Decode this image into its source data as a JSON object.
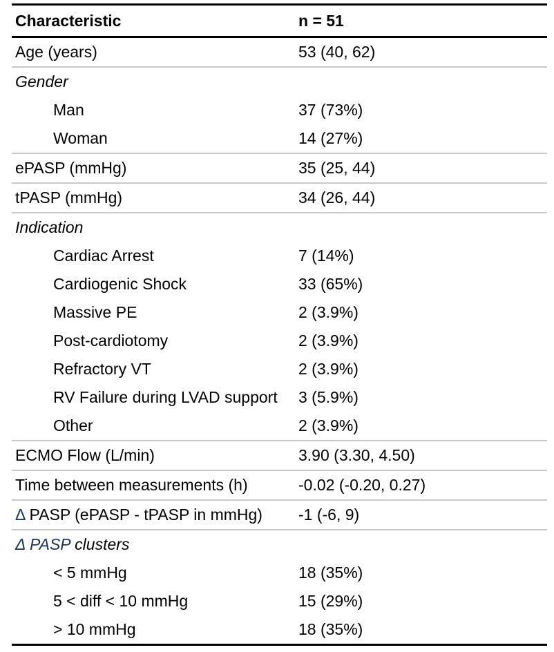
{
  "colors": {
    "accent": "#17365d",
    "rule_thick": "#000000",
    "rule_thin": "#c9c9c9",
    "text": "#000000",
    "background": "#ffffff"
  },
  "table": {
    "header": {
      "characteristic": "Characteristic",
      "value": "n = 51"
    },
    "rows": [
      {
        "label": "Age (years)",
        "value": "53 (40, 62)",
        "style": "normal",
        "divider_after": true
      },
      {
        "label": "Gender",
        "value": "",
        "style": "group",
        "divider_after": false
      },
      {
        "label": "Man",
        "value": "37 (73%)",
        "style": "sub",
        "divider_after": false
      },
      {
        "label": "Woman",
        "value": "14 (27%)",
        "style": "sub",
        "divider_after": true
      },
      {
        "label": "ePASP (mmHg)",
        "value": "35 (25, 44)",
        "style": "normal",
        "divider_after": true
      },
      {
        "label": "tPASP (mmHg)",
        "value": "34 (26, 44)",
        "style": "normal",
        "divider_after": true
      },
      {
        "label": "Indication",
        "value": "",
        "style": "group",
        "divider_after": false
      },
      {
        "label": "Cardiac Arrest",
        "value": "7 (14%)",
        "style": "sub",
        "divider_after": false
      },
      {
        "label": "Cardiogenic Shock",
        "value": "33 (65%)",
        "style": "sub",
        "divider_after": false
      },
      {
        "label": "Massive PE",
        "value": "2 (3.9%)",
        "style": "sub",
        "divider_after": false
      },
      {
        "label": "Post-cardiotomy",
        "value": "2 (3.9%)",
        "style": "sub",
        "divider_after": false
      },
      {
        "label": "Refractory VT",
        "value": "2 (3.9%)",
        "style": "sub",
        "divider_after": false
      },
      {
        "label": "RV Failure during LVAD support",
        "value": "3 (5.9%)",
        "style": "sub",
        "divider_after": false
      },
      {
        "label": "Other",
        "value": "2 (3.9%)",
        "style": "sub",
        "divider_after": true
      },
      {
        "label": "ECMO Flow (L/min)",
        "value": "3.90 (3.30, 4.50)",
        "style": "normal",
        "divider_after": true
      },
      {
        "label": "Time between measurements (h)",
        "value": "-0.02 (-0.20, 0.27)",
        "style": "normal",
        "divider_after": true
      },
      {
        "accent_prefix": "Δ",
        "label": " PASP (ePASP - tPASP in mmHg)",
        "value": "-1 (-6, 9)",
        "style": "normal",
        "divider_after": true
      },
      {
        "accent_prefix": "Δ PASP",
        "label": " clusters",
        "value": "",
        "style": "group",
        "divider_after": false
      },
      {
        "label": "< 5 mmHg",
        "value": "18 (35%)",
        "style": "sub",
        "divider_after": false
      },
      {
        "label": "5 < diff < 10 mmHg",
        "value": "15 (29%)",
        "style": "sub",
        "divider_after": false
      },
      {
        "label": "> 10 mmHg",
        "value": "18 (35%)",
        "style": "sub",
        "divider_after": false
      }
    ]
  }
}
